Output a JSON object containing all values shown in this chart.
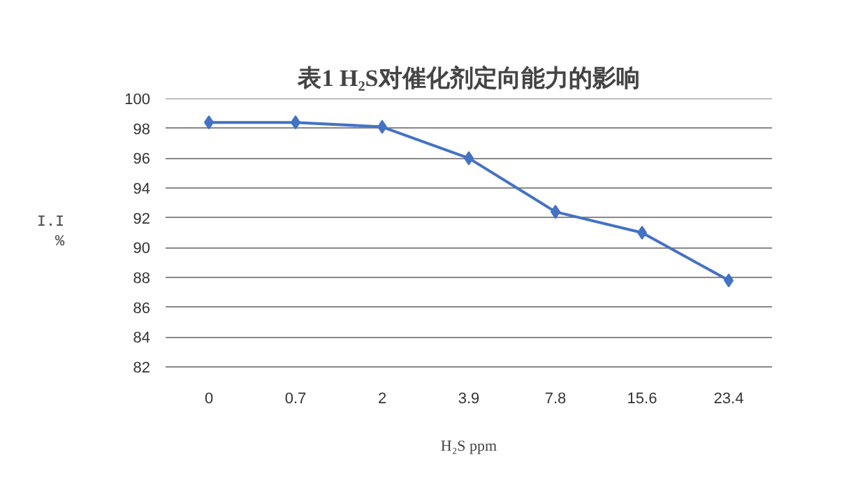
{
  "chart_data": {
    "type": "line",
    "title": "表1 H₂S对催化剂定向能力的影响",
    "xlabel": "H₂S ppm",
    "ylabel": "I.I\n%",
    "categories": [
      "0",
      "0.7",
      "2",
      "3.9",
      "7.8",
      "15.6",
      "23.4"
    ],
    "series": [
      {
        "color": "#4472c4",
        "values": [
          98.4,
          98.4,
          98.1,
          96.0,
          92.4,
          91.0,
          87.8
        ]
      }
    ],
    "ylim": [
      82,
      100
    ],
    "yticks": [
      82,
      84,
      86,
      88,
      90,
      92,
      94,
      96,
      98,
      100
    ],
    "grid": "y",
    "marker": "diamond",
    "line_style": "solid"
  }
}
